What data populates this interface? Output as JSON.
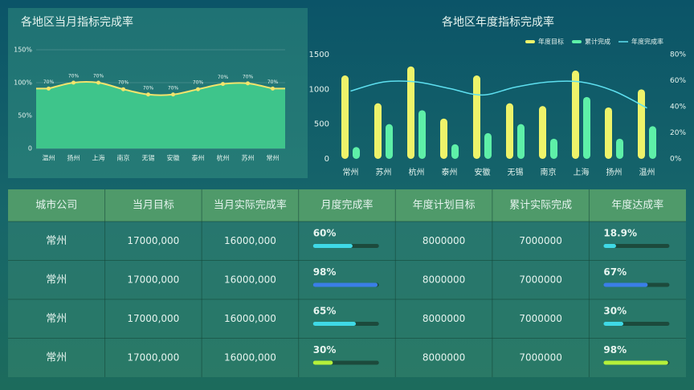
{
  "chart_data": [
    {
      "type": "area",
      "title": "各地区当月指标完成率",
      "categories": [
        "温州",
        "扬州",
        "上海",
        "南京",
        "无锡",
        "安徽",
        "泰州",
        "杭州",
        "苏州",
        "常州"
      ],
      "values": [
        91,
        100,
        100,
        90,
        82,
        82,
        90,
        98,
        99,
        91
      ],
      "annotations": [
        "70%",
        "70%",
        "70%",
        "70%",
        "70%",
        "70%",
        "70%",
        "70%",
        "70%",
        "70%"
      ],
      "color": "#f3e46b",
      "fill": "#3ec58b",
      "ylim": [
        0,
        150
      ],
      "yticks": [
        0,
        {
          "value": 50,
          "label": "50%"
        },
        {
          "value": 100,
          "label": "100%"
        },
        {
          "value": 150,
          "label": "150%"
        }
      ],
      "grid": true
    },
    {
      "type": "bar",
      "title": "各地区年度指标完成率",
      "categories": [
        "常州",
        "苏州",
        "杭州",
        "泰州",
        "安徽",
        "无锡",
        "南京",
        "上海",
        "扬州",
        "温州"
      ],
      "series": [
        {
          "name": "年度目标",
          "color": "#eef36a",
          "values": [
            1200,
            800,
            1330,
            580,
            1200,
            800,
            760,
            1270,
            740,
            1000
          ]
        },
        {
          "name": "累计完成",
          "color": "#5ef0a8",
          "values": [
            170,
            500,
            700,
            210,
            370,
            500,
            290,
            890,
            290,
            470
          ]
        },
        {
          "name": "年度完成率",
          "color": "#5ee0f0",
          "type": "line",
          "axis": "y2",
          "values": [
            52,
            59,
            59,
            54,
            49,
            55,
            59,
            59,
            52,
            39
          ]
        }
      ],
      "ylim": [
        0,
        1500
      ],
      "yticks": [
        0,
        500,
        1000,
        1500
      ],
      "y2lim": [
        0,
        80
      ],
      "y2ticks": [
        {
          "value": 0,
          "label": "0%"
        },
        {
          "value": 20,
          "label": "20%"
        },
        {
          "value": 40,
          "label": "40%"
        },
        {
          "value": 60,
          "label": "60%"
        },
        {
          "value": 80,
          "label": "80%"
        }
      ],
      "legend": "top-right",
      "grid": false
    }
  ],
  "table": {
    "header": [
      "城市公司",
      "当月目标",
      "当月实际完成率",
      "月度完成率",
      "年度计划目标",
      "累计实际完成",
      "年度达成率"
    ],
    "rows": [
      [
        "常州",
        "17000,000",
        "16000,000",
        {
          "value": 60,
          "label": "60%",
          "color": "#3fd9e6"
        },
        "8000000",
        "7000000",
        {
          "value": 18.9,
          "label": "18.9%",
          "color": "#3fd9e6"
        }
      ],
      [
        "常州",
        "17000,000",
        "16000,000",
        {
          "value": 98,
          "label": "98%",
          "color": "#3a7ee8"
        },
        "8000000",
        "7000000",
        {
          "value": 67,
          "label": "67%",
          "color": "#3a7ee8"
        }
      ],
      [
        "常州",
        "17000,000",
        "16000,000",
        {
          "value": 65,
          "label": "65%",
          "color": "#3fd9e6"
        },
        "8000000",
        "7000000",
        {
          "value": 30,
          "label": "30%",
          "color": "#3fd9e6"
        }
      ],
      [
        "常州",
        "17000,000",
        "16000,000",
        {
          "value": 30,
          "label": "30%",
          "color": "#b5f03a"
        },
        "8000000",
        "7000000",
        {
          "value": 98,
          "label": "98%",
          "color": "#b5f03a"
        }
      ]
    ]
  }
}
